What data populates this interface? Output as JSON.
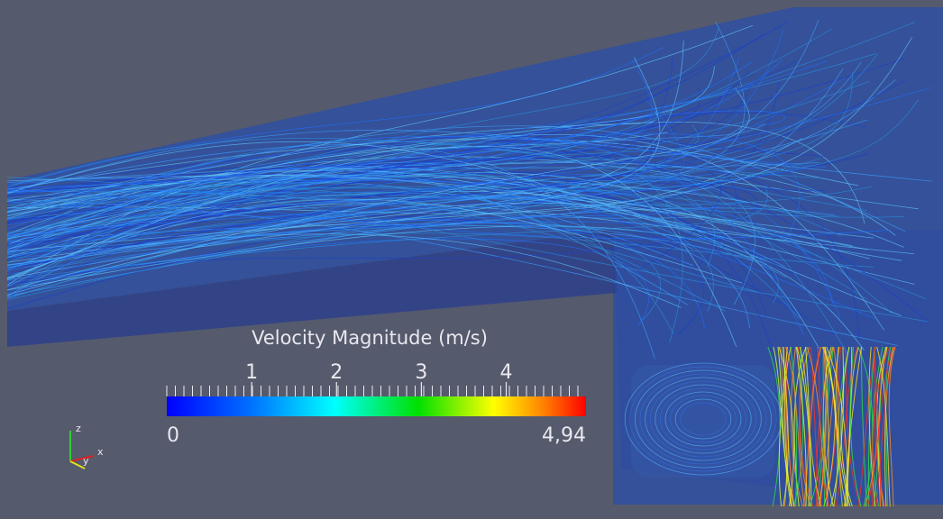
{
  "colorbar": {
    "title": "Velocity Magnitude (m/s)",
    "min": 0,
    "max": {
      "value": 4.94,
      "label": "4,94"
    },
    "ticks": [
      1,
      2,
      3,
      4
    ]
  },
  "axes": {
    "x": "x",
    "y": "y",
    "z": "z"
  }
}
